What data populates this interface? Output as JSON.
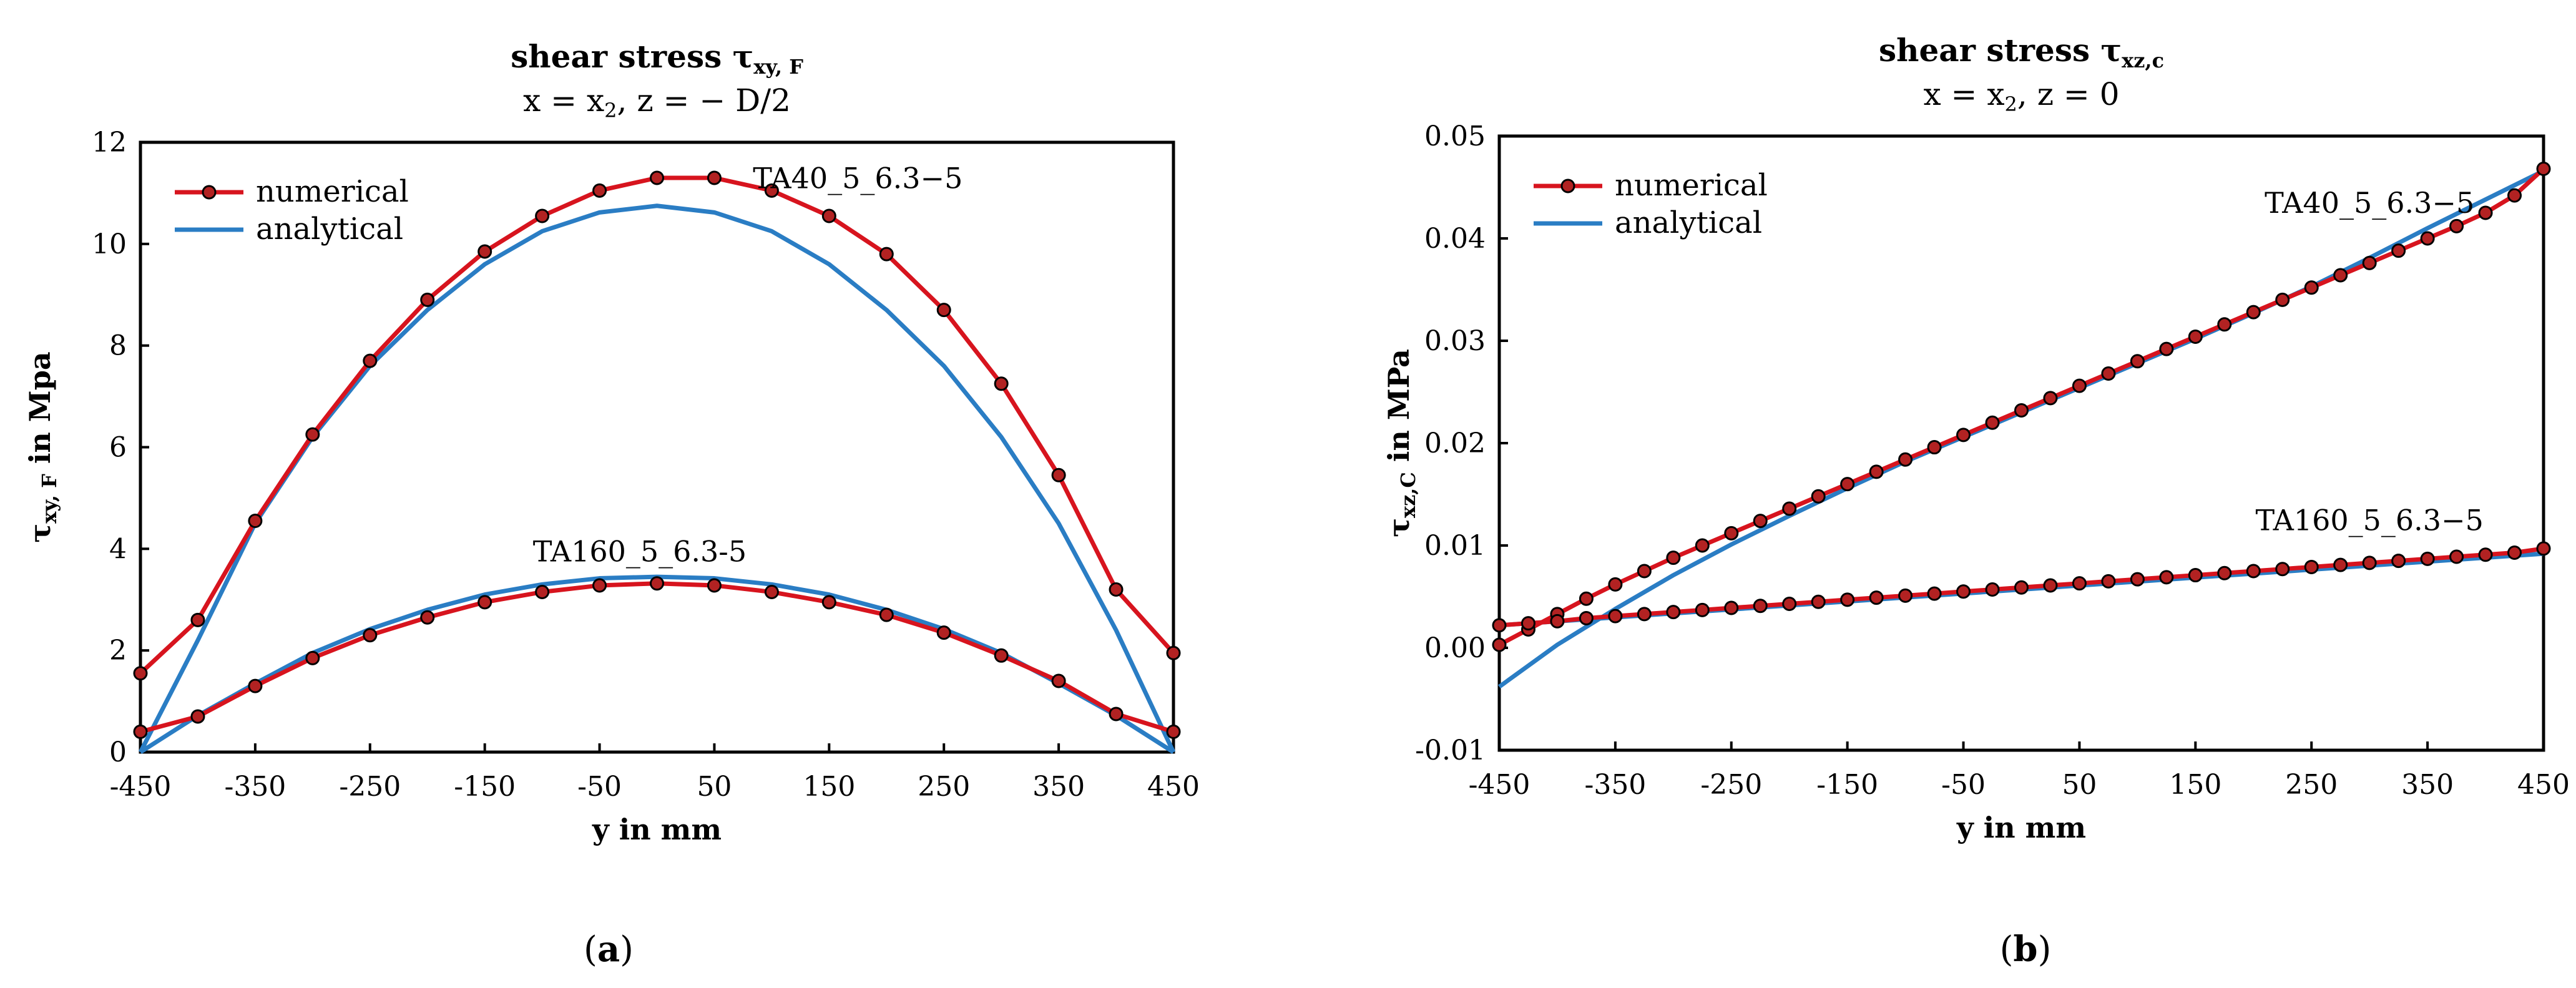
{
  "colors": {
    "numerical": "#d7141e",
    "analytical": "#2a7dc4",
    "marker_fill": "#b22222",
    "marker_edge": "#000000"
  },
  "chart_data": [
    {
      "type": "line",
      "panel_letter": "a",
      "title_main": "shear stress τ",
      "title_sub": "xy, F",
      "subtitle_parts": [
        "x = x",
        "2",
        ", z = − D/2"
      ],
      "xlabel": "y in mm",
      "ylabel_main": "τ",
      "ylabel_sub": "xy, F",
      "ylabel_rest": " in Mpa",
      "xlim": [
        -450,
        450
      ],
      "ylim": [
        0,
        12
      ],
      "xticks": [
        -450,
        -350,
        -250,
        -150,
        -50,
        50,
        150,
        250,
        350,
        450
      ],
      "yticks": [
        0,
        2,
        4,
        6,
        8,
        10,
        12
      ],
      "ytick_labels": [
        "0",
        "2",
        "4",
        "6",
        "8",
        "10",
        "12"
      ],
      "legend_position": "top-left",
      "legend": [
        "numerical",
        "analytical"
      ],
      "annotations": [
        {
          "text": "TA40_5_6.3−5",
          "x": 175,
          "y": 11.1
        },
        {
          "text": "TA160_5_6.3-5",
          "x": -15,
          "y": 3.75
        }
      ],
      "series": [
        {
          "group": "TA40_5_6.3−5",
          "kind": "numerical",
          "x": [
            -450,
            -400,
            -350,
            -300,
            -250,
            -200,
            -150,
            -100,
            -50,
            0,
            50,
            100,
            150,
            200,
            250,
            300,
            350,
            400,
            450
          ],
          "y": [
            1.55,
            2.6,
            4.55,
            6.25,
            7.7,
            8.9,
            9.85,
            10.55,
            11.05,
            11.3,
            11.3,
            11.05,
            10.55,
            9.8,
            8.7,
            7.25,
            5.45,
            3.2,
            1.95
          ]
        },
        {
          "group": "TA40_5_6.3−5",
          "kind": "analytical",
          "x": [
            -450,
            -400,
            -350,
            -300,
            -250,
            -200,
            -150,
            -100,
            -50,
            0,
            50,
            100,
            150,
            200,
            250,
            300,
            350,
            400,
            450
          ],
          "y": [
            0,
            2.2,
            4.5,
            6.2,
            7.6,
            8.7,
            9.6,
            10.25,
            10.62,
            10.75,
            10.62,
            10.25,
            9.6,
            8.7,
            7.6,
            6.2,
            4.5,
            2.4,
            0
          ]
        },
        {
          "group": "TA160_5_6.3-5",
          "kind": "numerical",
          "x": [
            -450,
            -400,
            -350,
            -300,
            -250,
            -200,
            -150,
            -100,
            -50,
            0,
            50,
            100,
            150,
            200,
            250,
            300,
            350,
            400,
            450
          ],
          "y": [
            0.4,
            0.7,
            1.3,
            1.85,
            2.3,
            2.65,
            2.95,
            3.15,
            3.28,
            3.32,
            3.28,
            3.15,
            2.95,
            2.7,
            2.35,
            1.9,
            1.4,
            0.75,
            0.4
          ]
        },
        {
          "group": "TA160_5_6.3-5",
          "kind": "analytical",
          "x": [
            -450,
            -400,
            -350,
            -300,
            -250,
            -200,
            -150,
            -100,
            -50,
            0,
            50,
            100,
            150,
            200,
            250,
            300,
            350,
            400,
            450
          ],
          "y": [
            0,
            0.72,
            1.35,
            1.95,
            2.42,
            2.8,
            3.1,
            3.3,
            3.42,
            3.45,
            3.42,
            3.3,
            3.1,
            2.8,
            2.42,
            1.95,
            1.35,
            0.72,
            0
          ]
        }
      ]
    },
    {
      "type": "line",
      "panel_letter": "b",
      "title_main": "shear stress τ",
      "title_sub": "xz,c",
      "subtitle_parts": [
        "x = x",
        "2",
        ", z = 0"
      ],
      "xlabel": "y in mm",
      "ylabel_main": "τ",
      "ylabel_sub": "xz,C",
      "ylabel_rest": " in MPa",
      "xlim": [
        -450,
        450
      ],
      "ylim": [
        -0.01,
        0.05
      ],
      "xticks": [
        -450,
        -350,
        -250,
        -150,
        -50,
        50,
        150,
        250,
        350,
        450
      ],
      "yticks": [
        -0.01,
        0,
        0.01,
        0.02,
        0.03,
        0.04,
        0.05
      ],
      "ytick_labels": [
        "-0.01",
        "0.00",
        "0.01",
        "0.02",
        "0.03",
        "0.04",
        "0.05"
      ],
      "legend_position": "top-left",
      "legend": [
        "numerical",
        "analytical"
      ],
      "annotations": [
        {
          "text": "TA40_5_6.3−5",
          "x": 300,
          "y": 0.0425
        },
        {
          "text": "TA160_5_6.3−5",
          "x": 300,
          "y": 0.0115
        }
      ],
      "series": [
        {
          "group": "TA40_5_6.3−5",
          "kind": "numerical",
          "x": [
            -450,
            -425,
            -400,
            -375,
            -350,
            -325,
            -300,
            -275,
            -250,
            -225,
            -200,
            -175,
            -150,
            -125,
            -100,
            -75,
            -50,
            -25,
            0,
            25,
            50,
            75,
            100,
            125,
            150,
            175,
            200,
            225,
            250,
            275,
            300,
            325,
            350,
            375,
            400,
            425,
            450
          ],
          "y": [
            0.0003,
            0.0018,
            0.0033,
            0.0048,
            0.0062,
            0.0075,
            0.0088,
            0.01,
            0.0112,
            0.0124,
            0.0136,
            0.0148,
            0.016,
            0.0172,
            0.0184,
            0.0196,
            0.0208,
            0.022,
            0.0232,
            0.0244,
            0.0256,
            0.0268,
            0.028,
            0.0292,
            0.0304,
            0.0316,
            0.0328,
            0.034,
            0.0352,
            0.0364,
            0.0376,
            0.0388,
            0.04,
            0.0412,
            0.0425,
            0.0442,
            0.0468
          ]
        },
        {
          "group": "TA40_5_6.3−5",
          "kind": "analytical",
          "x": [
            -450,
            -400,
            -350,
            -300,
            -250,
            -200,
            -150,
            -100,
            -50,
            0,
            50,
            100,
            150,
            200,
            250,
            300,
            350,
            400,
            450
          ],
          "y": [
            -0.0038,
            0.0003,
            0.0038,
            0.0071,
            0.0101,
            0.0129,
            0.0156,
            0.0182,
            0.0206,
            0.023,
            0.0254,
            0.0278,
            0.0302,
            0.0327,
            0.0353,
            0.0381,
            0.041,
            0.0438,
            0.0466
          ]
        },
        {
          "group": "TA160_5_6.3−5",
          "kind": "numerical",
          "x": [
            -450,
            -425,
            -400,
            -375,
            -350,
            -325,
            -300,
            -275,
            -250,
            -225,
            -200,
            -175,
            -150,
            -125,
            -100,
            -75,
            -50,
            -25,
            0,
            25,
            50,
            75,
            100,
            125,
            150,
            175,
            200,
            225,
            250,
            275,
            300,
            325,
            350,
            375,
            400,
            425,
            450
          ],
          "y": [
            0.0022,
            0.0024,
            0.0026,
            0.0029,
            0.0031,
            0.0033,
            0.0035,
            0.0037,
            0.0039,
            0.0041,
            0.0043,
            0.0045,
            0.0047,
            0.0049,
            0.0051,
            0.0053,
            0.0055,
            0.0057,
            0.0059,
            0.0061,
            0.0063,
            0.0065,
            0.0067,
            0.0069,
            0.0071,
            0.0073,
            0.0075,
            0.0077,
            0.0079,
            0.0081,
            0.0083,
            0.0085,
            0.0087,
            0.0089,
            0.0091,
            0.0093,
            0.0097
          ]
        },
        {
          "group": "TA160_5_6.3−5",
          "kind": "analytical",
          "x": [
            -450,
            450
          ],
          "y": [
            0.0022,
            0.0092
          ]
        }
      ]
    }
  ]
}
